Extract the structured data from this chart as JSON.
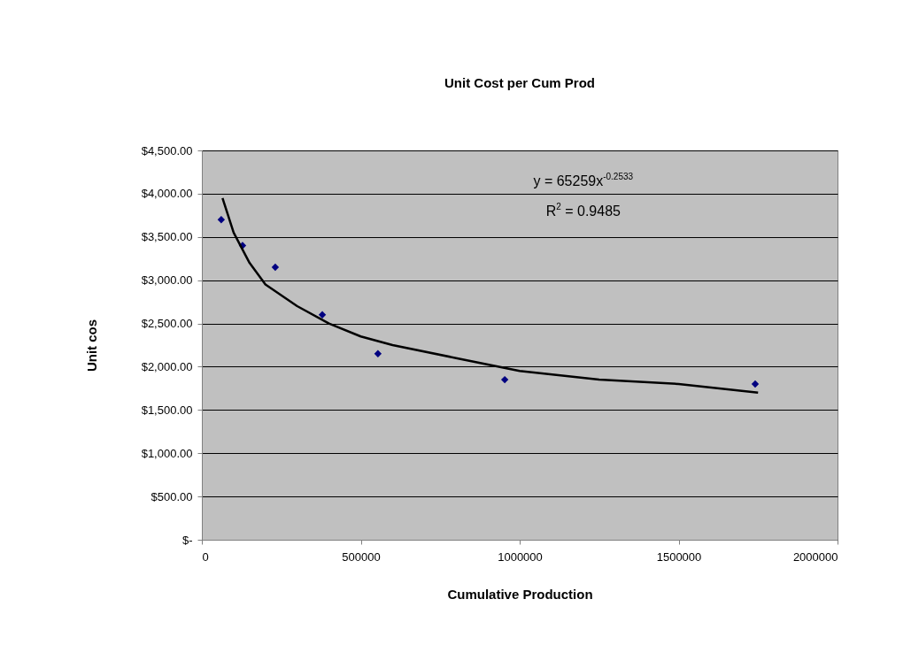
{
  "chart_data": {
    "type": "scatter",
    "title": "Unit Cost per Cum Prod",
    "xlabel": "Cumulative Production",
    "ylabel": "Unit cos",
    "xlim": [
      0,
      2000000
    ],
    "xticks": [
      0,
      500000,
      1000000,
      1500000,
      2000000
    ],
    "ylim": [
      0,
      4500
    ],
    "yticks": [
      {
        "value": 0,
        "label": "$-"
      },
      {
        "value": 500,
        "label": "$500.00"
      },
      {
        "value": 1000,
        "label": "$1,000.00"
      },
      {
        "value": 1500,
        "label": "$1,500.00"
      },
      {
        "value": 2000,
        "label": "$2,000.00"
      },
      {
        "value": 2500,
        "label": "$2,500.00"
      },
      {
        "value": 3000,
        "label": "$3,000.00"
      },
      {
        "value": 3500,
        "label": "$3,500.00"
      },
      {
        "value": 4000,
        "label": "$4,000.00"
      },
      {
        "value": 4500,
        "label": "$4,500.00"
      }
    ],
    "grid": "y",
    "annotations": [
      "y = 65259x$^{-0.2533}$",
      "R$^{2}$ = 0.9485"
    ],
    "series": [
      {
        "color": "#000080",
        "marker": "diamond",
        "x": [
          61000,
          128000,
          231000,
          379000,
          554000,
          953000,
          1741000
        ],
        "values": [
          3700,
          3400,
          3150,
          2600,
          2150,
          1850,
          1800
        ]
      },
      {
        "type": "line",
        "color": "#000000",
        "x": [
          65000,
          100000,
          150000,
          200000,
          300000,
          400000,
          500000,
          600000,
          800000,
          1000000,
          1250000,
          1500000,
          1750000
        ],
        "values": [
          3950,
          3550,
          3200,
          2950,
          2700,
          2500,
          2350,
          2250,
          2100,
          1950,
          1850,
          1800,
          1700
        ]
      }
    ]
  }
}
